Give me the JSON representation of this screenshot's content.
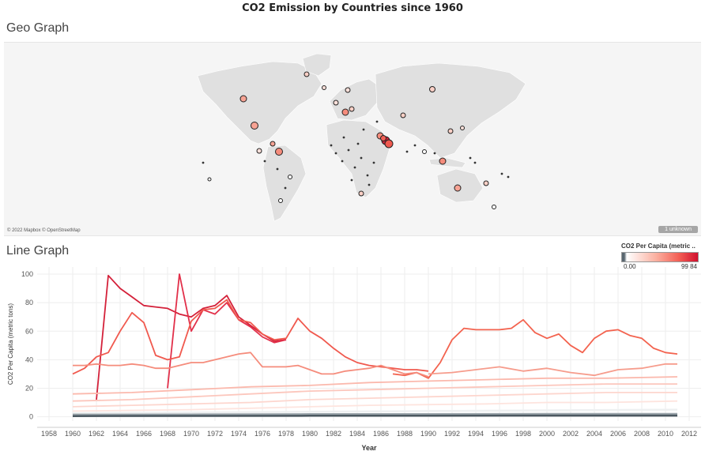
{
  "dashboard": {
    "title": "CO2 Emission by Countries since 1960"
  },
  "geo": {
    "title": "Geo Graph",
    "attribution": "© 2022 Mapbox © OpenStreetMap",
    "unknown_badge": "1 unknown"
  },
  "line": {
    "title": "Line Graph"
  },
  "legend": {
    "title": "CO2 Per Capita (metric ..",
    "min": "0.00",
    "max": "99.84"
  },
  "colors": {
    "low": "#5a6770",
    "mid": "#fbb0a0",
    "high": "#d0102e",
    "land": "#e0e0e0",
    "sea": "#f5f5f5"
  },
  "chart_data": {
    "type": "line",
    "title": "",
    "xlabel": "Year",
    "ylabel": "CO2 Per Capita (metric tons)",
    "xlim": [
      1957,
      2013
    ],
    "ylim": [
      -3,
      105
    ],
    "x_ticks": [
      1958,
      1960,
      1962,
      1964,
      1966,
      1968,
      1970,
      1972,
      1974,
      1976,
      1978,
      1980,
      1982,
      1984,
      1986,
      1988,
      1990,
      1992,
      1994,
      1996,
      1998,
      2000,
      2002,
      2004,
      2006,
      2008,
      2010,
      2012
    ],
    "y_ticks": [
      0,
      20,
      40,
      60,
      80,
      100
    ],
    "grid": true,
    "legend": "top-right",
    "series": [
      {
        "x": [
          1962,
          1963,
          1964,
          1965,
          1966,
          1967,
          1968,
          1969,
          1970,
          1971,
          1972,
          1973,
          1974,
          1975,
          1976,
          1977,
          1978
        ],
        "values": [
          12,
          99,
          90,
          84,
          78,
          77,
          76,
          72,
          70,
          76,
          78,
          85,
          70,
          64,
          58,
          53,
          54
        ],
        "color": "#d4213a"
      },
      {
        "x": [
          1968,
          1969,
          1970,
          1971,
          1972,
          1973,
          1974,
          1975,
          1976,
          1977,
          1978
        ],
        "values": [
          20,
          100,
          60,
          75,
          72,
          80,
          68,
          63,
          56,
          52,
          54
        ],
        "color": "#e2304a"
      },
      {
        "x": [
          1960,
          1961,
          1962,
          1963,
          1964,
          1965,
          1966,
          1967,
          1968,
          1969,
          1970,
          1971,
          1972,
          1973,
          1974,
          1975,
          1976,
          1977,
          1978,
          1979,
          1980,
          1981,
          1982,
          1983,
          1984,
          1985,
          1986,
          1987,
          1988,
          1989,
          1990
        ],
        "values": [
          30,
          34,
          42,
          45,
          60,
          73,
          66,
          43,
          40,
          42,
          67,
          75,
          76,
          82,
          68,
          66,
          58,
          54,
          55,
          69,
          60,
          55,
          48,
          42,
          38,
          36,
          35,
          34,
          33,
          33,
          32
        ],
        "color": "#f0594e"
      },
      {
        "x": [
          1987,
          1988,
          1989,
          1990,
          1991,
          1992,
          1993,
          1994,
          1995,
          1996,
          1997,
          1998,
          1999,
          2000,
          2001,
          2002,
          2003,
          2004,
          2005,
          2006,
          2007,
          2008,
          2009,
          2010,
          2011
        ],
        "values": [
          30,
          29,
          31,
          27,
          38,
          54,
          62,
          61,
          61,
          61,
          62,
          68,
          59,
          55,
          58,
          50,
          45,
          55,
          60,
          61,
          57,
          55,
          48,
          45,
          44
        ],
        "color": "#f3634f"
      },
      {
        "x": [
          1960,
          1961,
          1962,
          1963,
          1964,
          1965,
          1966,
          1967,
          1968,
          1969,
          1970,
          1971,
          1972,
          1973,
          1974,
          1975,
          1976,
          1977,
          1978,
          1979,
          1980,
          1981,
          1982,
          1983,
          1984,
          1985,
          1986,
          1987,
          1988,
          1989,
          1990
        ],
        "values": [
          36,
          36,
          37,
          36,
          36,
          37,
          36,
          34,
          34,
          36,
          38,
          38,
          40,
          42,
          44,
          45,
          35,
          35,
          35,
          36,
          33,
          30,
          30,
          32,
          33,
          34,
          36,
          33,
          30,
          31,
          28
        ],
        "color": "#f58c7c"
      },
      {
        "x": [
          1990,
          1992,
          1994,
          1996,
          1998,
          2000,
          2002,
          2004,
          2006,
          2008,
          2010,
          2011
        ],
        "values": [
          30,
          31,
          33,
          35,
          32,
          34,
          31,
          29,
          33,
          34,
          37,
          37
        ],
        "color": "#f69c8c"
      },
      {
        "x": [
          1960,
          1965,
          1970,
          1975,
          1980,
          1985,
          1990,
          1995,
          2000,
          2005,
          2011
        ],
        "values": [
          16,
          17,
          19,
          21,
          22,
          24,
          25,
          26,
          27,
          27,
          28
        ],
        "color": "#fbb9ad"
      },
      {
        "x": [
          1960,
          1965,
          1970,
          1975,
          1980,
          1985,
          1990,
          1995,
          2000,
          2005,
          2011
        ],
        "values": [
          11,
          12,
          14,
          16,
          18,
          19,
          20,
          21,
          22,
          23,
          23
        ],
        "color": "#fcc7bd"
      },
      {
        "x": [
          1960,
          1965,
          1970,
          1975,
          1980,
          1985,
          1990,
          1995,
          2000,
          2005,
          2011
        ],
        "values": [
          7,
          8,
          9,
          10,
          12,
          13,
          14,
          15,
          16,
          17,
          17
        ],
        "color": "#fdd6ce"
      },
      {
        "x": [
          1960,
          1965,
          1970,
          1975,
          1980,
          1985,
          1990,
          1995,
          2000,
          2005,
          2011
        ],
        "values": [
          4,
          4.5,
          5,
          6,
          7,
          8,
          8.5,
          9,
          10,
          10,
          11
        ],
        "color": "#fee4de"
      },
      {
        "x": [
          1960,
          1970,
          1980,
          1990,
          2000,
          2011
        ],
        "values": [
          2.5,
          3,
          3.5,
          4,
          4.5,
          5
        ],
        "color": "#eef0f1"
      },
      {
        "x": [
          1960,
          1970,
          1980,
          1990,
          2000,
          2011
        ],
        "values": [
          1.5,
          1.6,
          1.8,
          1.9,
          2,
          2
        ],
        "color": "#9aa4aa"
      },
      {
        "x": [
          1960,
          1970,
          1980,
          1990,
          2000,
          2011
        ],
        "values": [
          0.5,
          0.6,
          0.7,
          0.7,
          0.8,
          0.8
        ],
        "color": "#4b5860"
      }
    ]
  }
}
